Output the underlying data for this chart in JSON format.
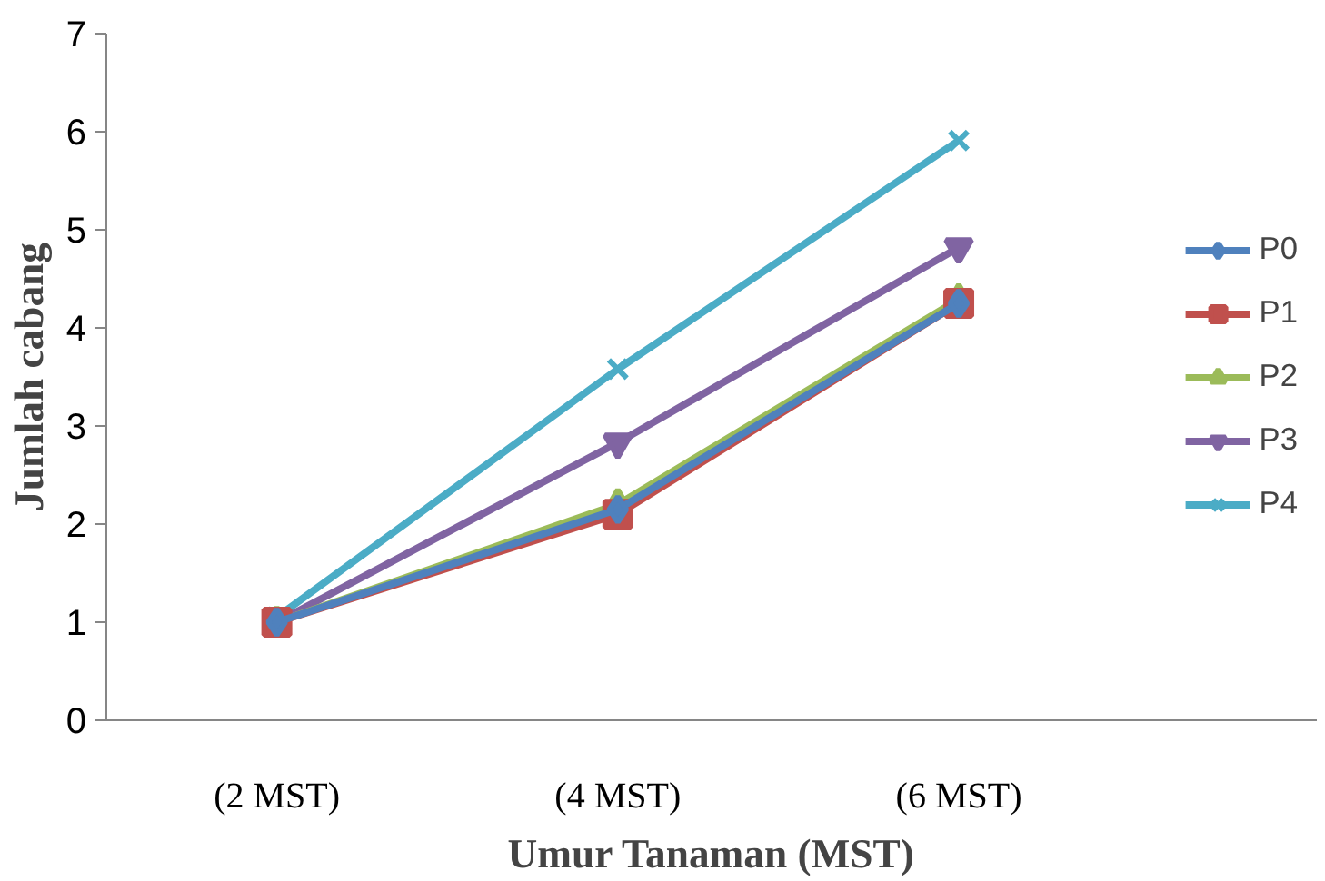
{
  "chart_data": {
    "type": "line",
    "xlabel": "Umur Tanaman (MST)",
    "ylabel": "Jumlah cabang",
    "categories": [
      "(2 MST)",
      "(4 MST)",
      "(6 MST)"
    ],
    "series": [
      {
        "name": "P0",
        "color": "#4f81bd",
        "marker": "diamond",
        "values": [
          1.0,
          2.15,
          4.25
        ]
      },
      {
        "name": "P1",
        "color": "#c0504d",
        "marker": "square",
        "values": [
          1.0,
          2.1,
          4.25
        ]
      },
      {
        "name": "P2",
        "color": "#9bbb59",
        "marker": "triangle",
        "values": [
          1.0,
          2.2,
          4.29
        ]
      },
      {
        "name": "P3",
        "color": "#8064a2",
        "marker": "triangle",
        "values": [
          1.0,
          2.83,
          4.82
        ]
      },
      {
        "name": "P4",
        "color": "#4bacc6",
        "marker": "cross",
        "values": [
          1.05,
          3.58,
          5.91
        ]
      }
    ],
    "ylim": [
      0,
      7
    ],
    "yticks": [
      0,
      1,
      2,
      3,
      4,
      5,
      6,
      7
    ],
    "grid": false,
    "legend": "right",
    "line_style": "solid"
  }
}
